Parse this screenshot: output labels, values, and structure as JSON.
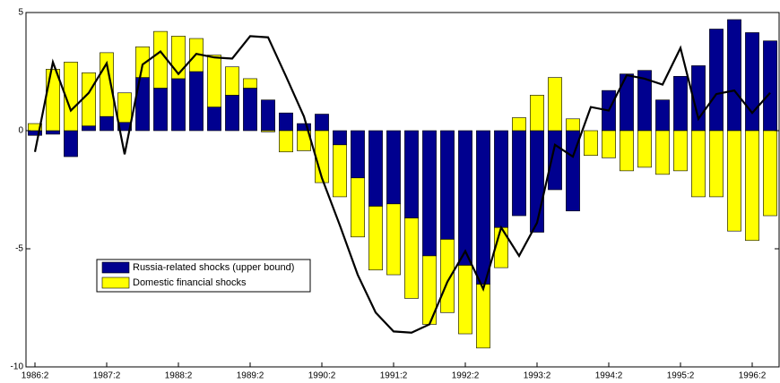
{
  "chart_data": {
    "type": "bar",
    "stacked": true,
    "categories": [
      "1986:2",
      null,
      null,
      null,
      "1987:2",
      null,
      null,
      null,
      "1988:2",
      null,
      null,
      null,
      "1989:2",
      null,
      null,
      null,
      "1990:2",
      null,
      null,
      null,
      "1991:2",
      null,
      null,
      null,
      "1992:2",
      null,
      null,
      null,
      "1993:2",
      null,
      null,
      null,
      "1994:2",
      null,
      null,
      null,
      "1995:2",
      null,
      null,
      null,
      "1996:2",
      null
    ],
    "series": [
      {
        "name": "Russia-related shocks (upper bound)",
        "color": "#00008f",
        "values": [
          -0.2,
          -0.15,
          -1.1,
          0.2,
          0.6,
          0.35,
          2.25,
          1.8,
          2.2,
          2.5,
          1.0,
          1.5,
          1.8,
          1.3,
          0.75,
          0.3,
          0.7,
          -0.6,
          -2.0,
          -3.2,
          -3.1,
          -3.7,
          -5.3,
          -4.6,
          -5.7,
          -6.5,
          -4.1,
          -3.6,
          -4.3,
          -2.5,
          -3.4,
          0,
          1.7,
          2.4,
          2.55,
          1.3,
          2.3,
          2.75,
          4.3,
          4.7,
          4.15,
          3.8
        ]
      },
      {
        "name": "Domestic financial shocks",
        "color": "#ffff00",
        "values": [
          0.3,
          2.6,
          2.9,
          2.25,
          2.7,
          1.25,
          1.3,
          2.4,
          1.8,
          1.4,
          2.2,
          1.2,
          0.4,
          -0.05,
          -0.9,
          -0.85,
          -2.2,
          -2.2,
          -2.5,
          -2.7,
          -3.0,
          -3.4,
          -2.9,
          -3.1,
          -2.9,
          -2.7,
          -1.7,
          0.55,
          1.5,
          2.25,
          0.5,
          -1.05,
          -1.15,
          -1.7,
          -1.55,
          -1.85,
          -1.7,
          -2.8,
          -2.8,
          -4.25,
          -4.65,
          -3.6
        ]
      }
    ],
    "line": {
      "color": "#000000",
      "values": [
        -0.9,
        2.9,
        0.85,
        1.6,
        2.85,
        -1.0,
        2.8,
        3.35,
        2.4,
        3.25,
        3.1,
        3.05,
        4.0,
        3.95,
        2.3,
        0.6,
        -2.0,
        -4.0,
        -6.1,
        -7.7,
        -8.5,
        -8.55,
        -8.2,
        -6.4,
        -5.1,
        -6.7,
        -4.1,
        -5.3,
        -3.9,
        -0.6,
        -1.1,
        1.0,
        0.85,
        2.35,
        2.2,
        1.95,
        3.5,
        0.5,
        1.55,
        1.7,
        0.75,
        1.6
      ]
    },
    "ylim": [
      -10,
      5
    ],
    "yticks": [
      -10,
      -5,
      0,
      5
    ],
    "legend": "lower left"
  }
}
